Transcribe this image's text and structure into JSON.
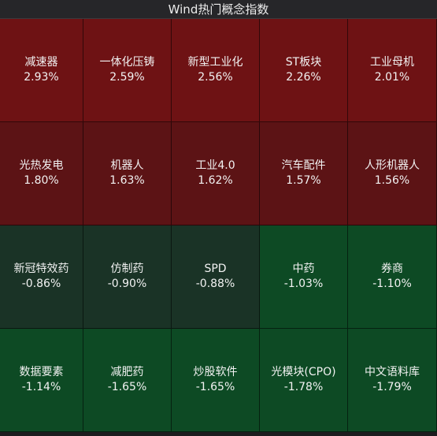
{
  "title": "Wind热门概念指数",
  "tiles": [
    {
      "name": "减速器",
      "change": "2.93%",
      "color": "#6e1214"
    },
    {
      "name": "一体化压铸",
      "change": "2.59%",
      "color": "#6e1214"
    },
    {
      "name": "新型工业化",
      "change": "2.56%",
      "color": "#6e1214"
    },
    {
      "name": "ST板块",
      "change": "2.26%",
      "color": "#6e1214"
    },
    {
      "name": "工业母机",
      "change": "2.01%",
      "color": "#6e1214"
    },
    {
      "name": "光热发电",
      "change": "1.80%",
      "color": "#5c1315"
    },
    {
      "name": "机器人",
      "change": "1.63%",
      "color": "#5c1315"
    },
    {
      "name": "工业4.0",
      "change": "1.62%",
      "color": "#5c1315"
    },
    {
      "name": "汽车配件",
      "change": "1.57%",
      "color": "#5c1315"
    },
    {
      "name": "人形机器人",
      "change": "1.56%",
      "color": "#5c1315"
    },
    {
      "name": "新冠特效药",
      "change": "-0.86%",
      "color": "#1a3326"
    },
    {
      "name": "仿制药",
      "change": "-0.90%",
      "color": "#1a3326"
    },
    {
      "name": "SPD",
      "change": "-0.88%",
      "color": "#1a3326"
    },
    {
      "name": "中药",
      "change": "-1.03%",
      "color": "#0d4a24"
    },
    {
      "name": "券商",
      "change": "-1.10%",
      "color": "#0d4a24"
    },
    {
      "name": "数据要素",
      "change": "-1.14%",
      "color": "#0d4a24"
    },
    {
      "name": "减肥药",
      "change": "-1.65%",
      "color": "#0d4a24"
    },
    {
      "name": "炒股软件",
      "change": "-1.65%",
      "color": "#0d4a24"
    },
    {
      "name": "光模块(CPO)",
      "change": "-1.78%",
      "color": "#0d4a24"
    },
    {
      "name": "中文语料库",
      "change": "-1.79%",
      "color": "#0d4a24"
    }
  ]
}
